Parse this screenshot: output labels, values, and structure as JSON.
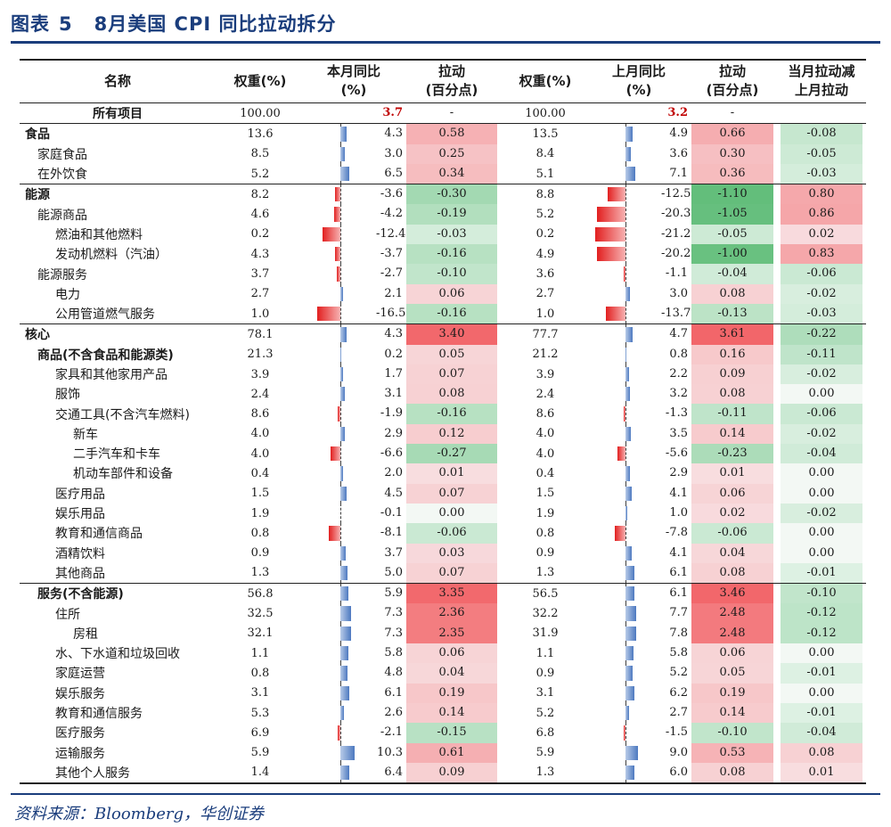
{
  "title": {
    "label": "图表",
    "number": "5",
    "text": "8月美国 CPI 同比拉动拆分"
  },
  "headers": [
    {
      "l1": "名称",
      "l2": ""
    },
    {
      "l1": "权重(%)",
      "l2": ""
    },
    {
      "l1": "本月同比",
      "l2": "(%)"
    },
    {
      "l1": "拉动",
      "l2": "(百分点)"
    },
    {
      "l1": "权重(%)",
      "l2": ""
    },
    {
      "l1": "上月同比",
      "l2": "(%)"
    },
    {
      "l1": "拉动",
      "l2": "(百分点)"
    },
    {
      "l1": "当月拉动减",
      "l2": "上月拉动"
    }
  ],
  "source": "资料来源：Bloomberg，华创证券",
  "rows": [
    {
      "name": "所有项目",
      "level": 0,
      "bold": true,
      "center": true,
      "w_cur": "100.00",
      "yoy_cur": "3.7",
      "pull_cur": "-",
      "w_prev": "100.00",
      "yoy_prev": "3.2",
      "pull_prev": "-",
      "diff": ""
    },
    {
      "name": "食品",
      "level": 0,
      "bold": true,
      "w_cur": "13.6",
      "yoy_cur": "4.3",
      "pull_cur": "0.58",
      "w_prev": "13.5",
      "yoy_prev": "4.9",
      "pull_prev": "0.66",
      "diff": "-0.08"
    },
    {
      "name": "家庭食品",
      "level": 1,
      "w_cur": "8.5",
      "yoy_cur": "3.0",
      "pull_cur": "0.25",
      "w_prev": "8.4",
      "yoy_prev": "3.6",
      "pull_prev": "0.30",
      "diff": "-0.05"
    },
    {
      "name": "在外饮食",
      "level": 1,
      "w_cur": "5.2",
      "yoy_cur": "6.5",
      "pull_cur": "0.34",
      "w_prev": "5.1",
      "yoy_prev": "7.1",
      "pull_prev": "0.36",
      "diff": "-0.03"
    },
    {
      "name": "能源",
      "level": 0,
      "bold": true,
      "w_cur": "8.2",
      "yoy_cur": "-3.6",
      "pull_cur": "-0.30",
      "w_prev": "8.8",
      "yoy_prev": "-12.5",
      "pull_prev": "-1.10",
      "diff": "0.80"
    },
    {
      "name": "能源商品",
      "level": 1,
      "w_cur": "4.6",
      "yoy_cur": "-4.2",
      "pull_cur": "-0.19",
      "w_prev": "5.2",
      "yoy_prev": "-20.3",
      "pull_prev": "-1.05",
      "diff": "0.86"
    },
    {
      "name": "燃油和其他燃料",
      "level": 2,
      "w_cur": "0.2",
      "yoy_cur": "-12.4",
      "pull_cur": "-0.03",
      "w_prev": "0.2",
      "yoy_prev": "-21.2",
      "pull_prev": "-0.05",
      "diff": "0.02"
    },
    {
      "name": "发动机燃料（汽油）",
      "level": 2,
      "w_cur": "4.3",
      "yoy_cur": "-3.7",
      "pull_cur": "-0.16",
      "w_prev": "4.9",
      "yoy_prev": "-20.2",
      "pull_prev": "-1.00",
      "diff": "0.83"
    },
    {
      "name": "能源服务",
      "level": 1,
      "w_cur": "3.7",
      "yoy_cur": "-2.7",
      "pull_cur": "-0.10",
      "w_prev": "3.6",
      "yoy_prev": "-1.1",
      "pull_prev": "-0.04",
      "diff": "-0.06"
    },
    {
      "name": "电力",
      "level": 2,
      "w_cur": "2.7",
      "yoy_cur": "2.1",
      "pull_cur": "0.06",
      "w_prev": "2.7",
      "yoy_prev": "3.0",
      "pull_prev": "0.08",
      "diff": "-0.02"
    },
    {
      "name": "公用管道燃气服务",
      "level": 2,
      "w_cur": "1.0",
      "yoy_cur": "-16.5",
      "pull_cur": "-0.16",
      "w_prev": "1.0",
      "yoy_prev": "-13.7",
      "pull_prev": "-0.13",
      "diff": "-0.03"
    },
    {
      "name": "核心",
      "level": 0,
      "bold": true,
      "w_cur": "78.1",
      "yoy_cur": "4.3",
      "pull_cur": "3.40",
      "w_prev": "77.7",
      "yoy_prev": "4.7",
      "pull_prev": "3.61",
      "diff": "-0.22"
    },
    {
      "name": "商品(不含食品和能源类)",
      "level": 1,
      "bold": true,
      "w_cur": "21.3",
      "yoy_cur": "0.2",
      "pull_cur": "0.05",
      "w_prev": "21.2",
      "yoy_prev": "0.8",
      "pull_prev": "0.16",
      "diff": "-0.11"
    },
    {
      "name": "家具和其他家用产品",
      "level": 2,
      "w_cur": "3.9",
      "yoy_cur": "1.7",
      "pull_cur": "0.07",
      "w_prev": "3.9",
      "yoy_prev": "2.2",
      "pull_prev": "0.09",
      "diff": "-0.02"
    },
    {
      "name": "服饰",
      "level": 2,
      "w_cur": "2.4",
      "yoy_cur": "3.1",
      "pull_cur": "0.08",
      "w_prev": "2.4",
      "yoy_prev": "3.2",
      "pull_prev": "0.08",
      "diff": "0.00"
    },
    {
      "name": "交通工具(不含汽车燃料)",
      "level": 2,
      "w_cur": "8.6",
      "yoy_cur": "-1.9",
      "pull_cur": "-0.16",
      "w_prev": "8.6",
      "yoy_prev": "-1.3",
      "pull_prev": "-0.11",
      "diff": "-0.06"
    },
    {
      "name": "新车",
      "level": 3,
      "w_cur": "4.0",
      "yoy_cur": "2.9",
      "pull_cur": "0.12",
      "w_prev": "4.0",
      "yoy_prev": "3.5",
      "pull_prev": "0.14",
      "diff": "-0.02"
    },
    {
      "name": "二手汽车和卡车",
      "level": 3,
      "w_cur": "4.0",
      "yoy_cur": "-6.6",
      "pull_cur": "-0.27",
      "w_prev": "4.0",
      "yoy_prev": "-5.6",
      "pull_prev": "-0.23",
      "diff": "-0.04"
    },
    {
      "name": "机动车部件和设备",
      "level": 3,
      "w_cur": "0.4",
      "yoy_cur": "2.0",
      "pull_cur": "0.01",
      "w_prev": "0.4",
      "yoy_prev": "2.9",
      "pull_prev": "0.01",
      "diff": "0.00"
    },
    {
      "name": "医疗用品",
      "level": 2,
      "w_cur": "1.5",
      "yoy_cur": "4.5",
      "pull_cur": "0.07",
      "w_prev": "1.5",
      "yoy_prev": "4.1",
      "pull_prev": "0.06",
      "diff": "0.00"
    },
    {
      "name": "娱乐用品",
      "level": 2,
      "w_cur": "1.9",
      "yoy_cur": "-0.1",
      "pull_cur": "0.00",
      "w_prev": "1.9",
      "yoy_prev": "1.0",
      "pull_prev": "0.02",
      "diff": "-0.02"
    },
    {
      "name": "教育和通信商品",
      "level": 2,
      "w_cur": "0.8",
      "yoy_cur": "-8.1",
      "pull_cur": "-0.06",
      "w_prev": "0.8",
      "yoy_prev": "-7.8",
      "pull_prev": "-0.06",
      "diff": "0.00"
    },
    {
      "name": "酒精饮料",
      "level": 2,
      "w_cur": "0.9",
      "yoy_cur": "3.7",
      "pull_cur": "0.03",
      "w_prev": "0.9",
      "yoy_prev": "4.1",
      "pull_prev": "0.04",
      "diff": "0.00"
    },
    {
      "name": "其他商品",
      "level": 2,
      "w_cur": "1.3",
      "yoy_cur": "5.0",
      "pull_cur": "0.07",
      "w_prev": "1.3",
      "yoy_prev": "6.1",
      "pull_prev": "0.08",
      "diff": "-0.01"
    },
    {
      "name": "服务(不含能源)",
      "level": 1,
      "bold": true,
      "w_cur": "56.8",
      "yoy_cur": "5.9",
      "pull_cur": "3.35",
      "w_prev": "56.5",
      "yoy_prev": "6.1",
      "pull_prev": "3.46",
      "diff": "-0.10"
    },
    {
      "name": "住所",
      "level": 2,
      "w_cur": "32.5",
      "yoy_cur": "7.3",
      "pull_cur": "2.36",
      "w_prev": "32.2",
      "yoy_prev": "7.7",
      "pull_prev": "2.48",
      "diff": "-0.12"
    },
    {
      "name": "房租",
      "level": 3,
      "w_cur": "32.1",
      "yoy_cur": "7.3",
      "pull_cur": "2.35",
      "w_prev": "31.9",
      "yoy_prev": "7.8",
      "pull_prev": "2.48",
      "diff": "-0.12"
    },
    {
      "name": "水、下水道和垃圾回收",
      "level": 2,
      "w_cur": "1.1",
      "yoy_cur": "5.8",
      "pull_cur": "0.06",
      "w_prev": "1.1",
      "yoy_prev": "5.8",
      "pull_prev": "0.06",
      "diff": "0.00"
    },
    {
      "name": "家庭运营",
      "level": 2,
      "w_cur": "0.8",
      "yoy_cur": "4.8",
      "pull_cur": "0.04",
      "w_prev": "0.9",
      "yoy_prev": "5.2",
      "pull_prev": "0.05",
      "diff": "-0.01"
    },
    {
      "name": "娱乐服务",
      "level": 2,
      "w_cur": "3.1",
      "yoy_cur": "6.1",
      "pull_cur": "0.19",
      "w_prev": "3.1",
      "yoy_prev": "6.2",
      "pull_prev": "0.19",
      "diff": "0.00"
    },
    {
      "name": "教育和通信服务",
      "level": 2,
      "w_cur": "5.3",
      "yoy_cur": "2.6",
      "pull_cur": "0.14",
      "w_prev": "5.2",
      "yoy_prev": "2.7",
      "pull_prev": "0.14",
      "diff": "-0.01"
    },
    {
      "name": "医疗服务",
      "level": 2,
      "w_cur": "6.9",
      "yoy_cur": "-2.1",
      "pull_cur": "-0.15",
      "w_prev": "6.8",
      "yoy_prev": "-1.5",
      "pull_prev": "-0.10",
      "diff": "-0.04"
    },
    {
      "name": "运输服务",
      "level": 2,
      "w_cur": "5.9",
      "yoy_cur": "10.3",
      "pull_cur": "0.61",
      "w_prev": "5.9",
      "yoy_prev": "9.0",
      "pull_prev": "0.53",
      "diff": "0.08"
    },
    {
      "name": "其他个人服务",
      "level": 2,
      "w_cur": "1.4",
      "yoy_cur": "6.4",
      "pull_cur": "0.09",
      "w_prev": "1.3",
      "yoy_prev": "6.0",
      "pull_prev": "0.08",
      "diff": "0.01"
    }
  ]
}
